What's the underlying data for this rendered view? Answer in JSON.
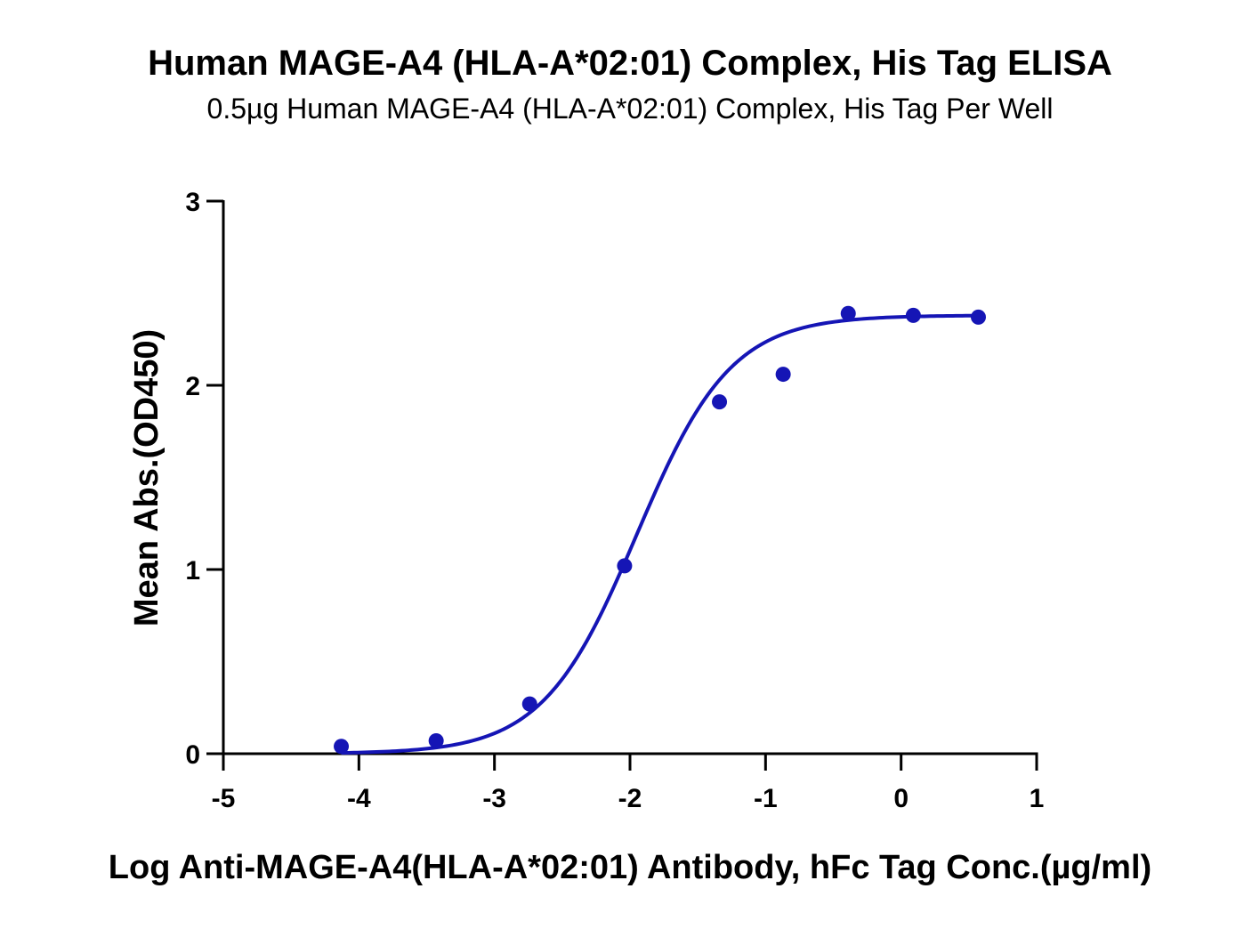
{
  "chart_data": {
    "type": "scatter",
    "title": "Human MAGE-A4 (HLA-A*02:01) Complex, His Tag ELISA",
    "subtitle": "0.5µg Human MAGE-A4 (HLA-A*02:01) Complex, His Tag Per Well",
    "xlabel": "Log Anti-MAGE-A4(HLA-A*02:01) Antibody, hFc Tag Conc.(µg/ml)",
    "ylabel": "Mean Abs.(OD450)",
    "xlim": [
      -5,
      1
    ],
    "ylim": [
      0,
      3
    ],
    "xticks": [
      "-5",
      "-4",
      "-3",
      "-2",
      "-1",
      "0",
      "1"
    ],
    "yticks": [
      "0",
      "1",
      "2",
      "3"
    ],
    "grid": false,
    "color": "#1515b5",
    "series": [
      {
        "points": [
          {
            "x": -4.13,
            "y": 0.04
          },
          {
            "x": -3.43,
            "y": 0.07
          },
          {
            "x": -2.74,
            "y": 0.27
          },
          {
            "x": -2.04,
            "y": 1.02
          },
          {
            "x": -1.34,
            "y": 1.91
          },
          {
            "x": -0.87,
            "y": 2.06
          },
          {
            "x": -0.39,
            "y": 2.39
          },
          {
            "x": 0.09,
            "y": 2.38
          },
          {
            "x": 0.57,
            "y": 2.37
          }
        ],
        "fit": {
          "model": "4PL",
          "bottom": 0.0,
          "top": 2.38,
          "logEC50": -1.95,
          "hill": 1.25
        }
      }
    ]
  }
}
